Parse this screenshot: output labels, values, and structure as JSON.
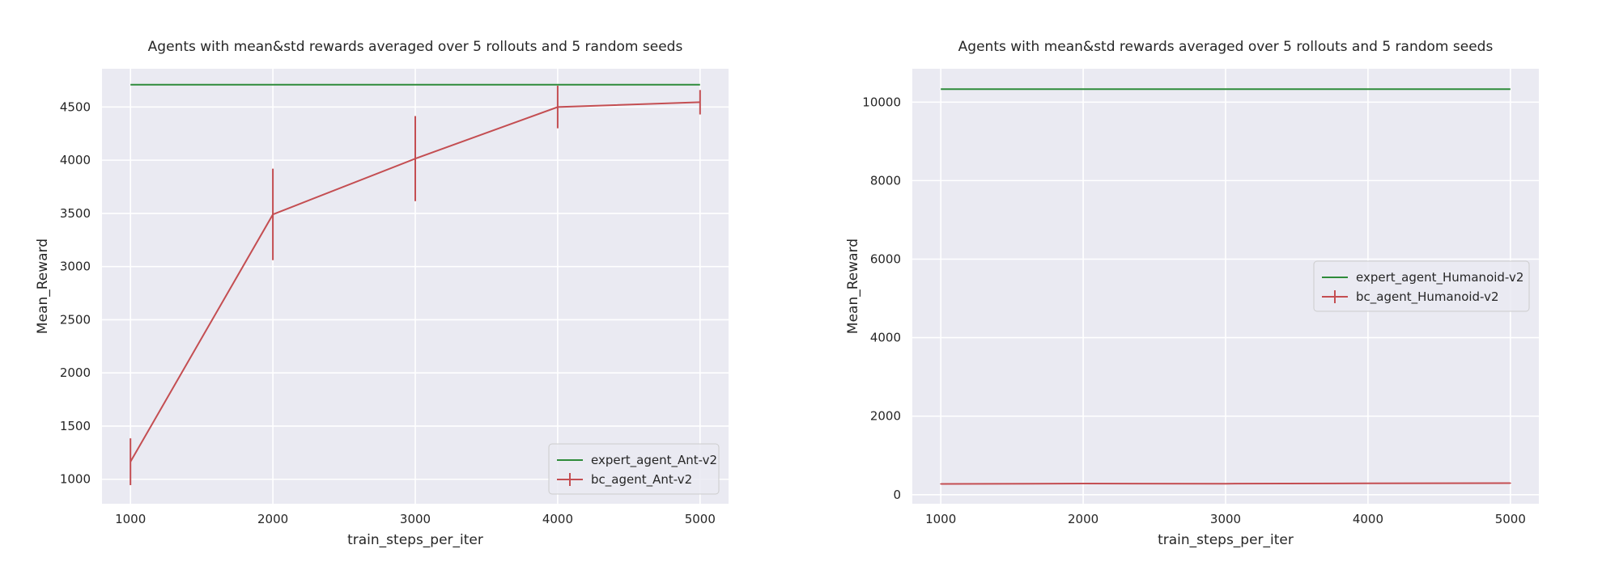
{
  "colors": {
    "expert": "#2e8b3a",
    "bc": "#c44e52",
    "background": "#eaeaf2",
    "grid": "#ffffff"
  },
  "chart_data": [
    {
      "type": "line",
      "title": "Agents with mean&std rewards averaged over 5 rollouts and 5 random seeds",
      "xlabel": "train_steps_per_iter",
      "ylabel": "Mean_Reward",
      "xlim": [
        800,
        5200
      ],
      "ylim": [
        770,
        4860
      ],
      "x_ticks": [
        1000,
        2000,
        3000,
        4000,
        5000
      ],
      "y_ticks": [
        1000,
        1500,
        2000,
        2500,
        3000,
        3500,
        4000,
        4500
      ],
      "grid": true,
      "legend_position": "lower-right",
      "series": [
        {
          "name": "expert_agent_Ant-v2",
          "color": "#2e8b3a",
          "x": [
            1000,
            5000
          ],
          "y": [
            4710,
            4710
          ]
        },
        {
          "name": "bc_agent_Ant-v2",
          "color": "#c44e52",
          "x": [
            1000,
            2000,
            3000,
            4000,
            5000
          ],
          "y": [
            1165,
            3490,
            4015,
            4500,
            4545
          ],
          "err": [
            220,
            430,
            400,
            200,
            115
          ]
        }
      ]
    },
    {
      "type": "line",
      "title": "Agents with mean&std rewards averaged over 5 rollouts and 5 random seeds",
      "xlabel": "train_steps_per_iter",
      "ylabel": "Mean_Reward",
      "xlim": [
        800,
        5200
      ],
      "ylim": [
        -230,
        10850
      ],
      "x_ticks": [
        1000,
        2000,
        3000,
        4000,
        5000
      ],
      "y_ticks": [
        0,
        2000,
        4000,
        6000,
        8000,
        10000
      ],
      "grid": true,
      "legend_position": "center-right",
      "series": [
        {
          "name": "expert_agent_Humanoid-v2",
          "color": "#2e8b3a",
          "x": [
            1000,
            5000
          ],
          "y": [
            10330,
            10330
          ]
        },
        {
          "name": "bc_agent_Humanoid-v2",
          "color": "#c44e52",
          "x": [
            1000,
            2000,
            3000,
            4000,
            5000
          ],
          "y": [
            275,
            285,
            280,
            290,
            295
          ],
          "err": [
            10,
            10,
            10,
            10,
            10
          ]
        }
      ]
    }
  ]
}
